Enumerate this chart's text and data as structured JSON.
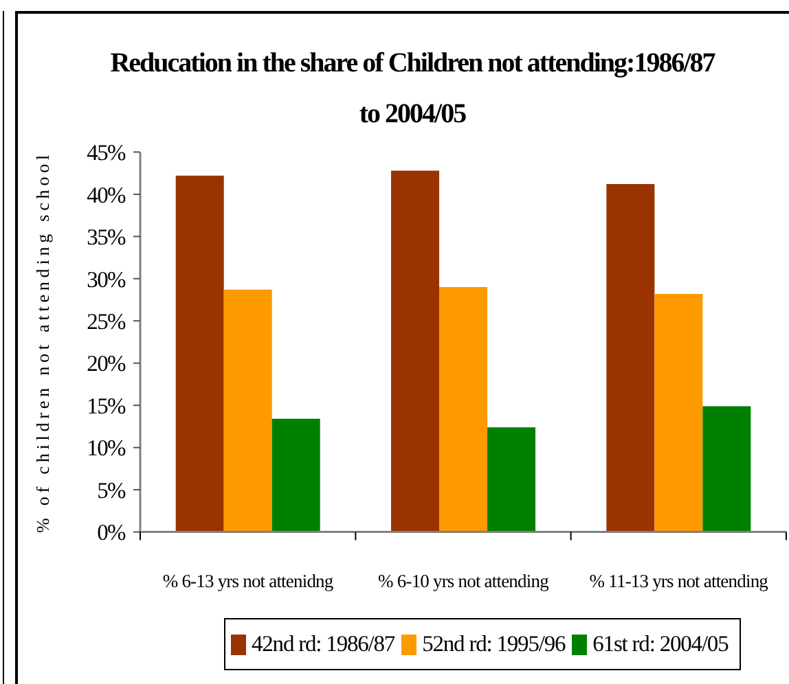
{
  "chart_data": {
    "type": "bar",
    "title": "Reducation in the share of Children not attending:1986/87 to 2004/05",
    "ylabel": "% of children not attending school",
    "categories": [
      "% 6-13 yrs not attenidng",
      "% 6-10 yrs not attending",
      "% 11-13 yrs not attending"
    ],
    "series": [
      {
        "name": "42nd rd: 1986/87",
        "color": "#993300",
        "values": [
          42.2,
          42.8,
          41.2
        ]
      },
      {
        "name": "52nd rd: 1995/96",
        "color": "#ff9900",
        "values": [
          28.7,
          29.0,
          28.2
        ]
      },
      {
        "name": "61st rd: 2004/05",
        "color": "#008000",
        "values": [
          13.4,
          12.4,
          14.9
        ]
      }
    ],
    "ylim": [
      0,
      45
    ],
    "yticks": [
      {
        "value": 0,
        "label": "0%"
      },
      {
        "value": 5,
        "label": "5%"
      },
      {
        "value": 10,
        "label": "10%"
      },
      {
        "value": 15,
        "label": "15%"
      },
      {
        "value": 20,
        "label": "20%"
      },
      {
        "value": 25,
        "label": "25%"
      },
      {
        "value": 30,
        "label": "30%"
      },
      {
        "value": 35,
        "label": "35%"
      },
      {
        "value": 40,
        "label": "40%"
      },
      {
        "value": 45,
        "label": "45%"
      }
    ],
    "legend": "bottom"
  }
}
